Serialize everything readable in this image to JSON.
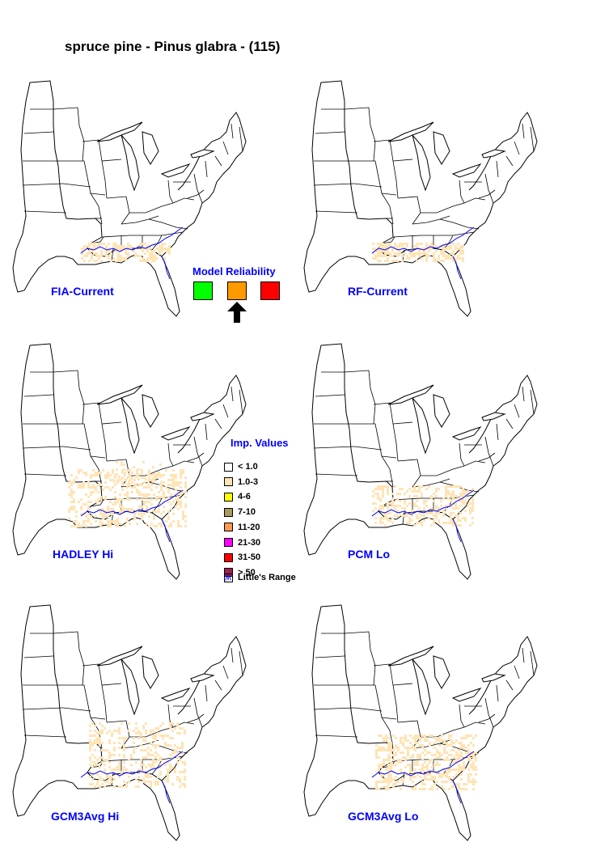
{
  "title": "spruce pine - Pinus glabra - (115)",
  "maps": [
    {
      "label": "FIA-Current"
    },
    {
      "label": "RF-Current"
    },
    {
      "label": "HADLEY Hi"
    },
    {
      "label": "PCM Lo"
    },
    {
      "label": "GCM3Avg Hi"
    },
    {
      "label": "GCM3Avg Lo"
    }
  ],
  "model_reliability": {
    "title": "Model Reliability",
    "options": [
      {
        "color": "#00ff00"
      },
      {
        "color": "#ff9900"
      },
      {
        "color": "#ff0000"
      }
    ],
    "selected_index": 1
  },
  "legend": {
    "title": "Imp. Values",
    "items": [
      {
        "label": "< 1.0",
        "color": "#ffffff"
      },
      {
        "label": "1.0-3",
        "color": "#ffe4b5"
      },
      {
        "label": "4-6",
        "color": "#ffff00"
      },
      {
        "label": "7-10",
        "color": "#a89a60"
      },
      {
        "label": "11-20",
        "color": "#ff9955"
      },
      {
        "label": "21-30",
        "color": "#ff00ff"
      },
      {
        "label": "31-50",
        "color": "#ff0000"
      },
      {
        "label": "> 50",
        "color": "#a02050"
      }
    ],
    "range_label": "Little's Range",
    "range_color": "#0000ff"
  }
}
